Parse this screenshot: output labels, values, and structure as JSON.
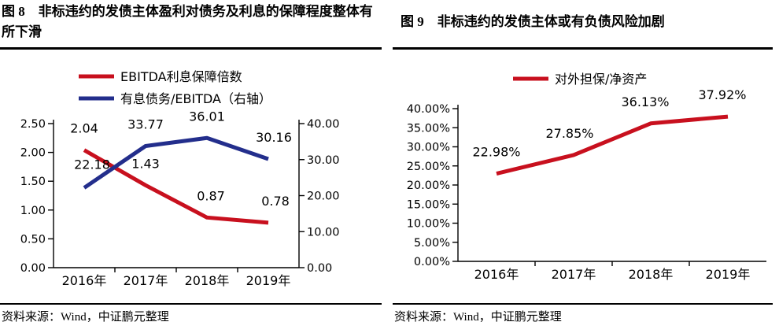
{
  "page": {
    "background": "#ffffff",
    "accent_red": "#C8101E",
    "accent_blue": "#232E8C"
  },
  "figures": [
    {
      "title": "图 8　非标违约的发债主体盈利对债务及利息的保障程度整体有所下滑",
      "source": "资料来源：Wind，中证鹏元整理"
    },
    {
      "title": "图 9　非标违约的发债主体或有负债风险加剧",
      "source": "资料来源：Wind，中证鹏元整理"
    }
  ],
  "chart_data": [
    {
      "type": "line",
      "title": "非标违约的发债主体盈利对债务及利息的保障程度整体有所下滑",
      "categories": [
        "2016年",
        "2017年",
        "2018年",
        "2019年"
      ],
      "series": [
        {
          "name": "EBITDA利息保障倍数",
          "axis": "left",
          "color": "#C8101E",
          "values": [
            2.04,
            1.43,
            0.87,
            0.78
          ],
          "point_labels": [
            "2.04",
            "1.43",
            "0.87",
            "0.78"
          ],
          "label_offsets": [
            [
              0,
              -22
            ],
            [
              0,
              -22
            ],
            [
              5,
              -22
            ],
            [
              9,
              -22
            ]
          ]
        },
        {
          "name": "有息债务/EBITDA（右轴）",
          "axis": "right",
          "color": "#232E8C",
          "values": [
            22.18,
            33.77,
            36.01,
            30.16
          ],
          "point_labels": [
            "22.18",
            "33.77",
            "36.01",
            "30.16"
          ],
          "label_offsets": [
            [
              10,
              -24
            ],
            [
              0,
              -22
            ],
            [
              0,
              -22
            ],
            [
              7,
              -22
            ]
          ]
        }
      ],
      "left_axis": {
        "min": 0,
        "max": 2.5,
        "tick_labels": [
          "0.00",
          "0.50",
          "1.00",
          "1.50",
          "2.00",
          "2.50"
        ]
      },
      "right_axis": {
        "min": 0,
        "max": 40,
        "tick_labels": [
          "0.00",
          "10.00",
          "20.00",
          "30.00",
          "40.00"
        ]
      },
      "legend_position": "top",
      "grid": false
    },
    {
      "type": "line",
      "title": "非标违约的发债主体或有负债风险加剧",
      "categories": [
        "2016年",
        "2017年",
        "2018年",
        "2019年"
      ],
      "series": [
        {
          "name": "对外担保/净资产",
          "axis": "left",
          "color": "#C8101E",
          "values": [
            22.98,
            27.85,
            36.13,
            37.92
          ],
          "point_labels": [
            "22.98%",
            "27.85%",
            "36.13%",
            "37.92%"
          ],
          "label_offsets": [
            [
              0,
              -22
            ],
            [
              -5,
              -22
            ],
            [
              -7,
              -22
            ],
            [
              -7,
              -22
            ]
          ]
        }
      ],
      "left_axis": {
        "min": 0,
        "max": 40,
        "tick_labels": [
          "0.00%",
          "5.00%",
          "10.00%",
          "15.00%",
          "20.00%",
          "25.00%",
          "30.00%",
          "35.00%",
          "40.00%"
        ]
      },
      "legend_position": "top",
      "grid": false
    }
  ]
}
